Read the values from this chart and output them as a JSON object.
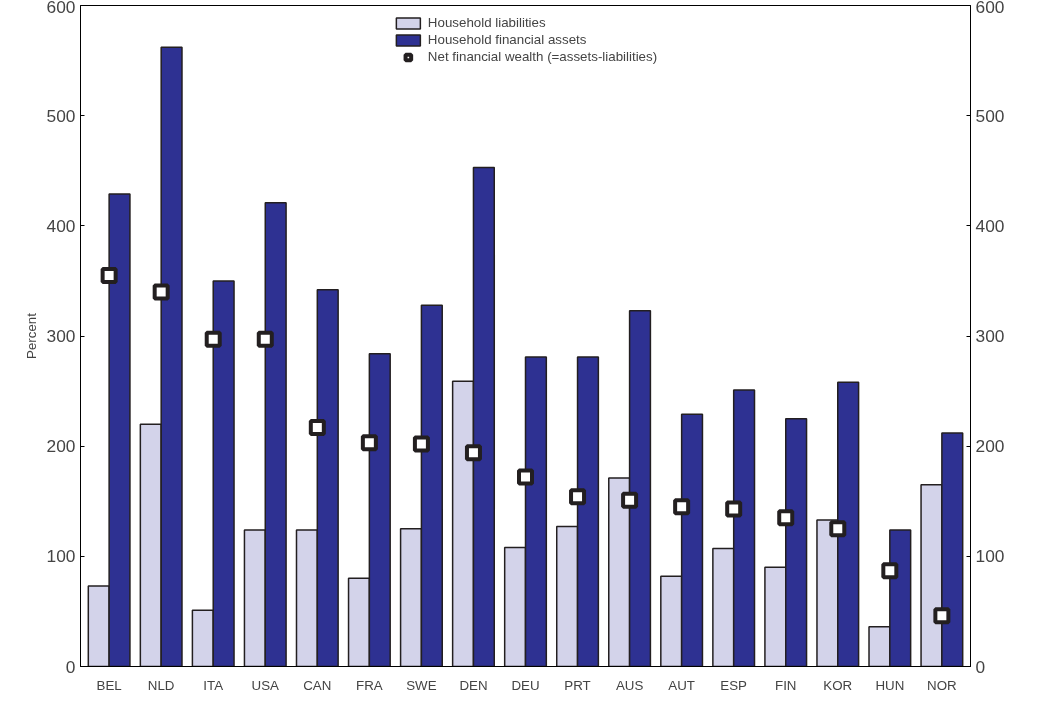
{
  "chart_data": {
    "type": "bar",
    "ylabel": "Percent",
    "categories": [
      "BEL",
      "NLD",
      "ITA",
      "USA",
      "CAN",
      "FRA",
      "SWE",
      "DEN",
      "DEU",
      "PRT",
      "AUS",
      "AUT",
      "ESP",
      "FIN",
      "KOR",
      "HUN",
      "NOR"
    ],
    "series": [
      {
        "name": "Household liabilities",
        "color": "#d3d3ea",
        "values": [
          73,
          220,
          51,
          124,
          124,
          80,
          125,
          259,
          108,
          127,
          171,
          82,
          107,
          90,
          133,
          36,
          165
        ]
      },
      {
        "name": "Household financial assets",
        "color": "#2e3192",
        "values": [
          429,
          562,
          350,
          421,
          342,
          284,
          328,
          453,
          281,
          281,
          323,
          229,
          251,
          225,
          258,
          124,
          212
        ]
      },
      {
        "name": "Net financial wealth (=assets-liabilities)",
        "type": "scatter",
        "marker": "square",
        "color": "#231f20",
        "values": [
          355,
          340,
          297,
          297,
          217,
          203,
          202,
          194,
          172,
          154,
          151,
          145,
          143,
          135,
          125,
          87,
          46
        ]
      }
    ],
    "ylim": [
      0,
      600
    ],
    "yticks": [
      0,
      100,
      200,
      300,
      400,
      500,
      600
    ],
    "y2lim": [
      0,
      600
    ],
    "y2ticks": [
      0,
      100,
      200,
      300,
      400,
      500,
      600
    ],
    "grid": false,
    "legend": "top"
  }
}
